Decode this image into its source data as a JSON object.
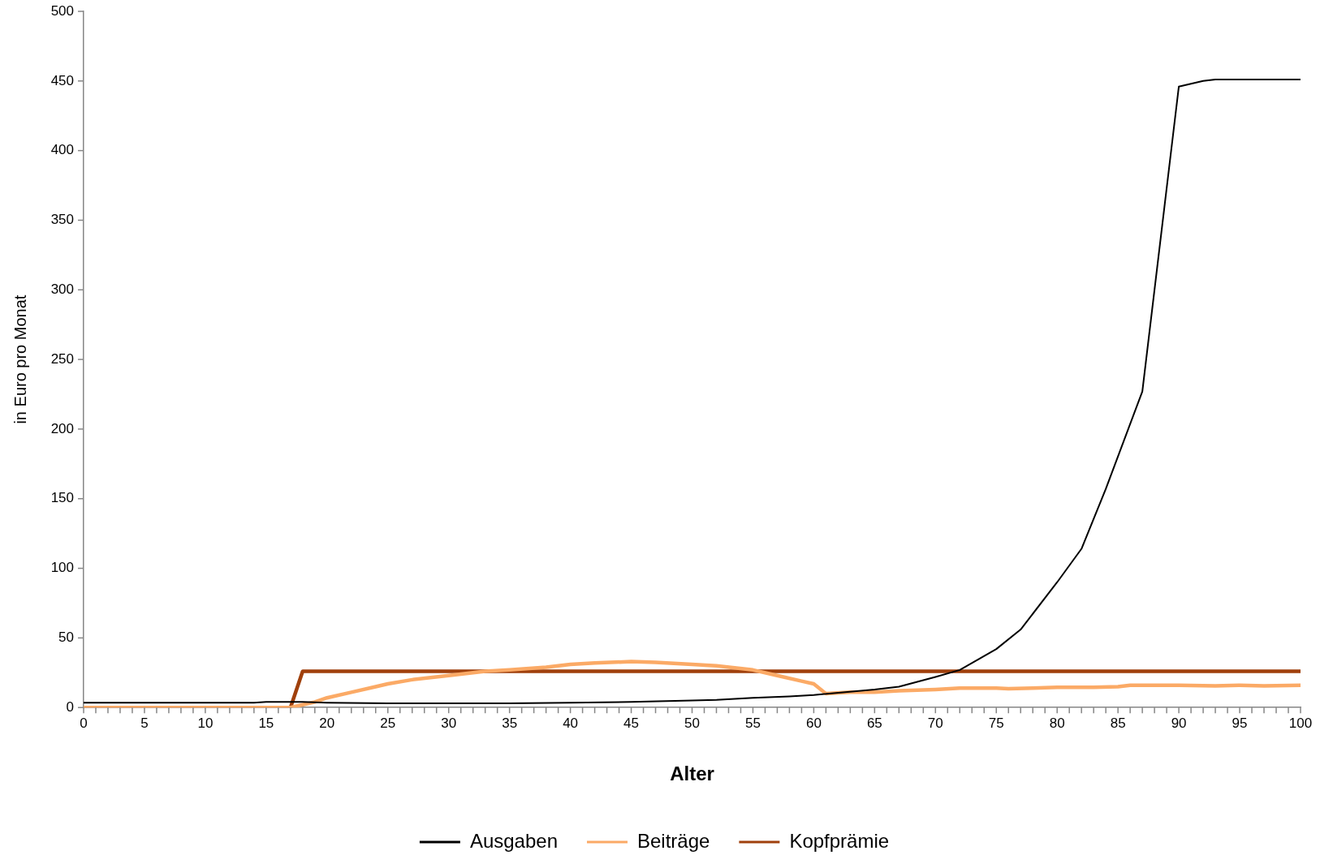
{
  "chart_data": {
    "type": "line",
    "xlabel": "Alter",
    "ylabel": "in Euro pro Monat",
    "xlim": [
      0,
      100
    ],
    "ylim": [
      0,
      500
    ],
    "xticks": [
      0,
      {
        "value": 1,
        "label": null
      },
      {
        "value": 2,
        "label": null
      },
      {
        "value": 3,
        "label": null
      },
      {
        "value": 4,
        "label": null
      },
      5,
      {
        "value": 6,
        "label": null
      },
      {
        "value": 7,
        "label": null
      },
      {
        "value": 8,
        "label": null
      },
      {
        "value": 9,
        "label": null
      },
      10,
      {
        "value": 11,
        "label": null
      },
      {
        "value": 12,
        "label": null
      },
      {
        "value": 13,
        "label": null
      },
      {
        "value": 14,
        "label": null
      },
      15,
      {
        "value": 16,
        "label": null
      },
      {
        "value": 17,
        "label": null
      },
      {
        "value": 18,
        "label": null
      },
      {
        "value": 19,
        "label": null
      },
      20,
      {
        "value": 21,
        "label": null
      },
      {
        "value": 22,
        "label": null
      },
      {
        "value": 23,
        "label": null
      },
      {
        "value": 24,
        "label": null
      },
      25,
      {
        "value": 26,
        "label": null
      },
      {
        "value": 27,
        "label": null
      },
      {
        "value": 28,
        "label": null
      },
      {
        "value": 29,
        "label": null
      },
      30,
      {
        "value": 31,
        "label": null
      },
      {
        "value": 32,
        "label": null
      },
      {
        "value": 33,
        "label": null
      },
      {
        "value": 34,
        "label": null
      },
      35,
      {
        "value": 36,
        "label": null
      },
      {
        "value": 37,
        "label": null
      },
      {
        "value": 38,
        "label": null
      },
      {
        "value": 39,
        "label": null
      },
      40,
      {
        "value": 41,
        "label": null
      },
      {
        "value": 42,
        "label": null
      },
      {
        "value": 43,
        "label": null
      },
      {
        "value": 44,
        "label": null
      },
      45,
      {
        "value": 46,
        "label": null
      },
      {
        "value": 47,
        "label": null
      },
      {
        "value": 48,
        "label": null
      },
      {
        "value": 49,
        "label": null
      },
      50,
      {
        "value": 51,
        "label": null
      },
      {
        "value": 52,
        "label": null
      },
      {
        "value": 53,
        "label": null
      },
      {
        "value": 54,
        "label": null
      },
      55,
      {
        "value": 56,
        "label": null
      },
      {
        "value": 57,
        "label": null
      },
      {
        "value": 58,
        "label": null
      },
      {
        "value": 59,
        "label": null
      },
      60,
      {
        "value": 61,
        "label": null
      },
      {
        "value": 62,
        "label": null
      },
      {
        "value": 63,
        "label": null
      },
      {
        "value": 64,
        "label": null
      },
      65,
      {
        "value": 66,
        "label": null
      },
      {
        "value": 67,
        "label": null
      },
      {
        "value": 68,
        "label": null
      },
      {
        "value": 69,
        "label": null
      },
      70,
      {
        "value": 71,
        "label": null
      },
      {
        "value": 72,
        "label": null
      },
      {
        "value": 73,
        "label": null
      },
      {
        "value": 74,
        "label": null
      },
      75,
      {
        "value": 76,
        "label": null
      },
      {
        "value": 77,
        "label": null
      },
      {
        "value": 78,
        "label": null
      },
      {
        "value": 79,
        "label": null
      },
      80,
      {
        "value": 81,
        "label": null
      },
      {
        "value": 82,
        "label": null
      },
      {
        "value": 83,
        "label": null
      },
      {
        "value": 84,
        "label": null
      },
      85,
      {
        "value": 86,
        "label": null
      },
      {
        "value": 87,
        "label": null
      },
      {
        "value": 88,
        "label": null
      },
      {
        "value": 89,
        "label": null
      },
      90,
      {
        "value": 91,
        "label": null
      },
      {
        "value": 92,
        "label": null
      },
      {
        "value": 93,
        "label": null
      },
      {
        "value": 94,
        "label": null
      },
      95,
      {
        "value": 96,
        "label": null
      },
      {
        "value": 97,
        "label": null
      },
      {
        "value": 98,
        "label": null
      },
      {
        "value": 99,
        "label": null
      },
      100
    ],
    "yticks": [
      0,
      50,
      100,
      150,
      200,
      250,
      300,
      350,
      400,
      450,
      500
    ],
    "grid": false,
    "legend": "bottom",
    "marker": "none",
    "line_style": "solid",
    "series": [
      {
        "name": "Ausgaben",
        "color": "#000000",
        "x": [
          0,
          14,
          15,
          18,
          20,
          25,
          35,
          40,
          45,
          50,
          52,
          55,
          58,
          60,
          65,
          67,
          70,
          72,
          75,
          77,
          80,
          82,
          84,
          87,
          90,
          91,
          92,
          93,
          100
        ],
        "values": [
          3.5,
          3.5,
          4,
          4,
          3.5,
          3,
          3,
          3.5,
          4,
          5,
          5.5,
          7,
          8,
          9,
          13,
          15,
          22,
          27,
          42,
          56,
          90,
          114,
          157,
          227,
          446,
          448,
          450,
          451,
          451
        ]
      },
      {
        "name": "Beiträge",
        "color": "#fbaa66",
        "x": [
          0,
          17,
          18,
          19,
          20,
          22,
          24,
          25,
          27,
          30,
          33,
          35,
          38,
          40,
          42,
          45,
          47,
          50,
          52,
          55,
          57,
          59,
          60,
          61,
          63,
          65,
          67,
          70,
          72,
          75,
          76,
          78,
          80,
          83,
          85,
          86,
          90,
          93,
          95,
          97,
          100
        ],
        "values": [
          0,
          0,
          2,
          4,
          7,
          11,
          15,
          17,
          20,
          23,
          26,
          27,
          29,
          31,
          32,
          33,
          32.5,
          31,
          30,
          27,
          23,
          19,
          17,
          10,
          11,
          11,
          12,
          13,
          14,
          14,
          13.5,
          14,
          14.5,
          14.5,
          15,
          16,
          16,
          15.5,
          16,
          15.5,
          16
        ]
      },
      {
        "name": "Kopfprämie",
        "color": "#a0400c",
        "x": [
          0,
          17,
          18,
          100
        ],
        "values": [
          0,
          0,
          26,
          26
        ]
      }
    ]
  }
}
